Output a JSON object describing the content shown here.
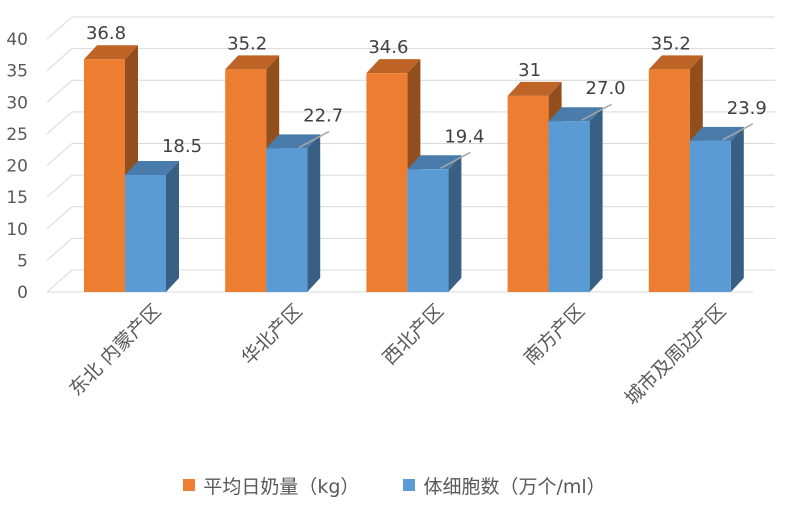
{
  "chart_data": {
    "type": "bar",
    "categories": [
      "东北 内蒙产区",
      "华北产区",
      "西北产区",
      "南方产区",
      "城市及周边产区"
    ],
    "series": [
      {
        "name": "平均日奶量（kg）",
        "values": [
          36.8,
          35.2,
          34.6,
          31,
          35.2
        ],
        "labels": [
          "36.8",
          "35.2",
          "34.6",
          "31",
          "35.2"
        ],
        "color": "#ED7D31"
      },
      {
        "name": "体细胞数（万个/ml）",
        "values": [
          18.5,
          22.7,
          19.4,
          27.0,
          23.9
        ],
        "labels": [
          "18.5",
          "22.7",
          "19.4",
          "27.0",
          "23.9"
        ],
        "color": "#5B9BD5"
      }
    ],
    "ylim": [
      0,
      40
    ],
    "yticks": [
      "0",
      "5",
      "10",
      "15",
      "20",
      "25",
      "30",
      "35",
      "40"
    ],
    "grid": true,
    "legend": "bottom",
    "style": "3d-clustered-column"
  }
}
